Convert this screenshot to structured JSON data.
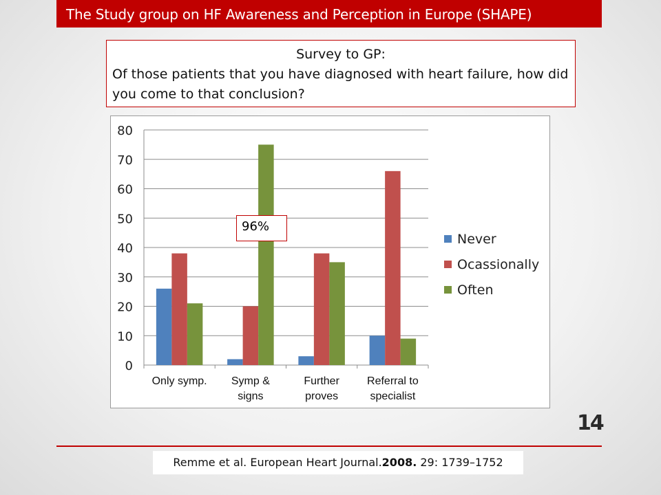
{
  "header": {
    "title": "The Study group on HF Awareness and Perception in Europe (SHAPE)"
  },
  "question": {
    "title": "Survey to GP:",
    "text": "Of those patients that you have diagnosed with heart failure, how did you come to that conclusion?"
  },
  "chart_data": {
    "type": "bar",
    "categories": [
      [
        "Only symp."
      ],
      [
        "Symp &",
        "signs"
      ],
      [
        "Further",
        "proves"
      ],
      [
        "Referral to",
        "specialist"
      ]
    ],
    "series": [
      {
        "name": "Never",
        "values": [
          26,
          2,
          3,
          10
        ],
        "color": "#4f81bd"
      },
      {
        "name": "Ocassionally",
        "values": [
          38,
          20,
          38,
          66
        ],
        "color": "#c0504d"
      },
      {
        "name": "Often",
        "values": [
          21,
          75,
          35,
          9
        ],
        "color": "#77933c"
      }
    ],
    "yticks": [
      0,
      10,
      20,
      30,
      40,
      50,
      60,
      70,
      80
    ],
    "ylim": [
      0,
      80
    ],
    "grid": true,
    "legend": "right",
    "title": "",
    "xlabel": "",
    "ylabel": "",
    "annotation": {
      "text": "96%"
    }
  },
  "slide": {
    "number": "14"
  },
  "citation": {
    "prefix": "Remme et al. European Heart Journal.",
    "year": "2008.",
    "suffix": " 29: 1739–1752"
  }
}
